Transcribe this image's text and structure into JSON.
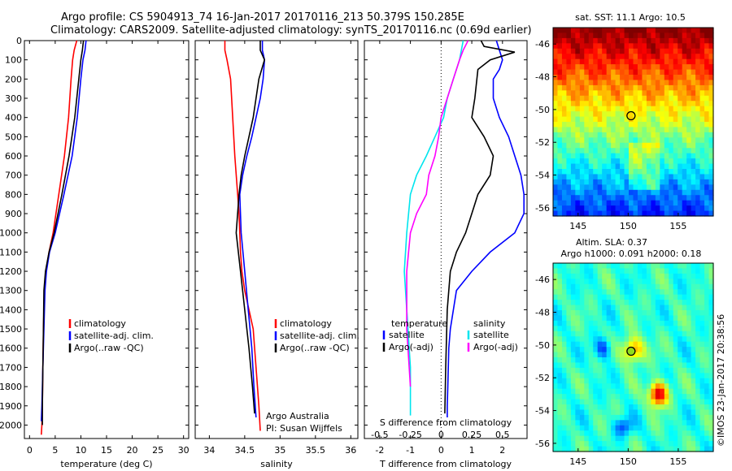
{
  "header": {
    "line1": "Argo profile: CS 5904913_74 16-Jan-2017 20170116_213 50.379S 150.285E",
    "line2": "Climatology: CARS2009. Satellite-adjusted climatology: synTS_20170116.nc (0.69d earlier)"
  },
  "credit": {
    "org": "Argo Australia",
    "pi": "PI: Susan Wijffels",
    "stamp": "©IMOS 23-Jan-2017 20:38:56"
  },
  "colors": {
    "climatology": "#ff0000",
    "satellite": "#0000ff",
    "argo": "#000000",
    "sat_salinity": "#00e5ee",
    "argo_salinity": "#ff00ff"
  },
  "chart_data": [
    {
      "type": "line",
      "name": "temperature-profile",
      "xlabel": "temperature (deg C)",
      "xlim": [
        -1,
        31
      ],
      "xticks": [
        0,
        5,
        10,
        15,
        20,
        25,
        30
      ],
      "ylim": [
        0,
        2070
      ],
      "yticks": [
        0,
        100,
        200,
        300,
        400,
        500,
        600,
        700,
        800,
        900,
        1000,
        1100,
        1200,
        1300,
        1400,
        1500,
        1600,
        1700,
        1800,
        1900,
        2000
      ],
      "y_reversed": true,
      "legend": [
        "climatology",
        "satellite-adj. clim.",
        "Argo(..raw -QC)"
      ],
      "legend_placement": "lower-center",
      "series": [
        {
          "name": "climatology",
          "color": "#ff0000",
          "x": [
            9.2,
            8.7,
            8.4,
            8.1,
            7.6,
            6.8,
            5.7,
            4.6,
            3.8,
            3.2,
            2.9,
            2.7,
            2.6,
            2.5,
            2.4,
            2.3
          ],
          "y": [
            0,
            50,
            100,
            200,
            400,
            600,
            800,
            1000,
            1100,
            1200,
            1300,
            1500,
            1700,
            1900,
            2000,
            2050
          ]
        },
        {
          "name": "satellite-adj. clim.",
          "color": "#0000ff",
          "x": [
            11.0,
            10.8,
            10.4,
            10.0,
            9.3,
            8.3,
            6.7,
            5.0,
            3.9,
            3.3,
            3.0,
            2.8,
            2.6,
            2.4,
            2.3
          ],
          "y": [
            0,
            50,
            100,
            200,
            400,
            600,
            800,
            1000,
            1100,
            1200,
            1300,
            1500,
            1700,
            1900,
            1980
          ]
        },
        {
          "name": "Argo(..raw -QC)",
          "color": "#000000",
          "x": [
            10.5,
            10.3,
            10.0,
            9.6,
            8.8,
            7.7,
            6.3,
            4.8,
            3.8,
            3.1,
            2.8,
            2.7,
            2.6,
            2.5,
            2.5
          ],
          "y": [
            0,
            50,
            100,
            200,
            400,
            600,
            800,
            1000,
            1100,
            1200,
            1300,
            1500,
            1700,
            1900,
            2000
          ]
        }
      ]
    },
    {
      "type": "line",
      "name": "salinity-profile",
      "xlabel": "salinity",
      "xlim": [
        33.8,
        36.1
      ],
      "xticks": [
        34,
        34.5,
        35,
        35.5,
        36
      ],
      "ylim": [
        0,
        2070
      ],
      "y_reversed": true,
      "legend": [
        "climatology",
        "satellite-adj. clim.",
        "Argo(..raw -QC)"
      ],
      "legend_placement": "lower-right",
      "series": [
        {
          "name": "climatology",
          "color": "#ff0000",
          "x": [
            34.22,
            34.22,
            34.25,
            34.3,
            34.33,
            34.36,
            34.4,
            34.42,
            34.43,
            34.44,
            34.46,
            34.5,
            34.56,
            34.62,
            34.66,
            34.7,
            34.72
          ],
          "y": [
            0,
            50,
            100,
            200,
            400,
            600,
            800,
            900,
            1000,
            1100,
            1200,
            1300,
            1400,
            1500,
            1700,
            1900,
            2030
          ]
        },
        {
          "name": "satellite-adj. clim.",
          "color": "#0000ff",
          "x": [
            34.75,
            34.75,
            34.78,
            34.76,
            34.72,
            34.66,
            34.6,
            34.53,
            34.47,
            34.43,
            34.45,
            34.5,
            34.55,
            34.6,
            34.63,
            34.66
          ],
          "y": [
            0,
            50,
            100,
            200,
            300,
            400,
            500,
            600,
            700,
            800,
            1000,
            1200,
            1400,
            1600,
            1800,
            1960
          ]
        },
        {
          "name": "Argo(..raw -QC)",
          "color": "#000000",
          "x": [
            34.72,
            34.72,
            34.78,
            34.7,
            34.66,
            34.62,
            34.56,
            34.5,
            34.45,
            34.42,
            34.38,
            34.44,
            34.5,
            34.56,
            34.61,
            34.64
          ],
          "y": [
            0,
            50,
            100,
            200,
            300,
            400,
            500,
            600,
            700,
            800,
            1000,
            1200,
            1400,
            1600,
            1800,
            1940
          ]
        }
      ]
    },
    {
      "type": "line",
      "name": "difference-profile",
      "xlabel_top": "S difference from climatology",
      "xlabel": "T difference from climatology",
      "xlim": [
        -2.5,
        2.8
      ],
      "xticks": [
        -2,
        -1,
        0,
        1,
        2
      ],
      "xticks_top": [
        "-0.5",
        "-0.25",
        "0",
        "0.25",
        "0.5"
      ],
      "ylim": [
        0,
        2070
      ],
      "y_reversed": true,
      "zero_line": "dotted",
      "legend_title_left": "temperature",
      "legend_title_right": "salinity",
      "legend_left": [
        "satellite",
        "Argo(-adj)"
      ],
      "legend_right": [
        "satellite",
        "Argo(-adj)"
      ],
      "legend_placement": "lower-center",
      "series": [
        {
          "name": "temperature satellite",
          "color": "#0000ff",
          "x": [
            1.8,
            1.9,
            2.0,
            1.9,
            1.7,
            1.7,
            1.9,
            2.2,
            2.4,
            2.6,
            2.7,
            2.7,
            2.4,
            1.6,
            1.0,
            0.5,
            0.3,
            0.25,
            0.22,
            0.2,
            0.2
          ],
          "y": [
            0,
            50,
            100,
            150,
            200,
            300,
            400,
            500,
            600,
            700,
            800,
            900,
            1000,
            1100,
            1200,
            1300,
            1500,
            1600,
            1800,
            1900,
            1960
          ]
        },
        {
          "name": "temperature Argo(-adj)",
          "color": "#000000",
          "x": [
            1.3,
            1.4,
            2.4,
            1.6,
            1.2,
            1.1,
            1.0,
            1.4,
            1.7,
            1.6,
            1.2,
            1.0,
            0.8,
            0.5,
            0.3,
            0.2,
            0.15,
            0.12
          ],
          "y": [
            0,
            30,
            60,
            100,
            150,
            300,
            400,
            500,
            600,
            700,
            800,
            900,
            1000,
            1100,
            1200,
            1400,
            1700,
            1940
          ]
        },
        {
          "name": "salinity satellite",
          "color": "#00e5ee",
          "x": [
            0.18,
            0.15,
            0.1,
            0.05,
            0.02,
            -0.05,
            -0.12,
            -0.2,
            -0.25,
            -0.28,
            -0.3,
            -0.28,
            -0.25,
            -0.25
          ],
          "y": [
            0,
            100,
            200,
            300,
            400,
            500,
            600,
            700,
            800,
            1000,
            1200,
            1400,
            1700,
            1950
          ]
        },
        {
          "name": "salinity Argo(-adj)",
          "color": "#ff00ff",
          "x": [
            0.22,
            0.18,
            0.15,
            0.1,
            0.05,
            0.0,
            -0.02,
            -0.05,
            -0.1,
            -0.12,
            -0.2,
            -0.25,
            -0.28,
            -0.28,
            -0.25
          ],
          "y": [
            0,
            50,
            100,
            200,
            300,
            400,
            500,
            600,
            700,
            800,
            900,
            1000,
            1200,
            1500,
            1800
          ]
        }
      ]
    },
    {
      "type": "heatmap",
      "name": "sst-map",
      "title": "sat. SST: 11.1  Argo: 10.5",
      "xlim": [
        142.5,
        158.5
      ],
      "ylim": [
        -56.5,
        -45
      ],
      "xticks": [
        145,
        150,
        155
      ],
      "yticks": [
        -46,
        -48,
        -50,
        -52,
        -54,
        -56
      ],
      "marker": {
        "lon": 150.285,
        "lat": -50.379
      }
    },
    {
      "type": "heatmap",
      "name": "sla-map",
      "title": "Altim. SLA: 0.37",
      "subtitle": "Argo h1000: 0.091  h2000: 0.18",
      "xlim": [
        142.5,
        158.5
      ],
      "ylim": [
        -56.5,
        -45
      ],
      "xticks": [
        145,
        150,
        155
      ],
      "yticks": [
        -46,
        -48,
        -50,
        -52,
        -54,
        -56
      ],
      "marker": {
        "lon": 150.285,
        "lat": -50.379
      }
    }
  ]
}
